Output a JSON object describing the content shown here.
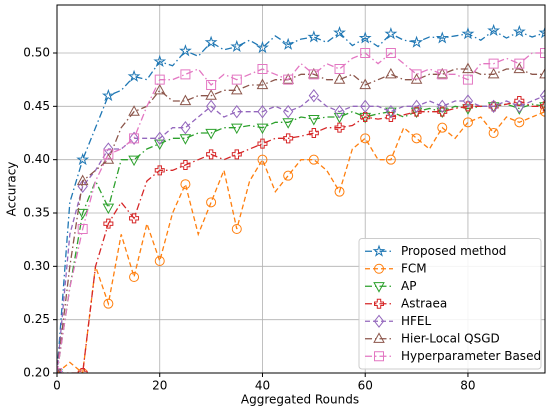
{
  "chart_data": {
    "type": "line",
    "xlabel": "Aggregated Rounds",
    "ylabel": "Accuracy",
    "x": [
      0,
      2.5,
      5,
      7.5,
      10,
      12.5,
      15,
      17.5,
      20,
      22.5,
      25,
      27.5,
      30,
      32.5,
      35,
      37.5,
      40,
      42.5,
      45,
      47.5,
      50,
      52.5,
      55,
      57.5,
      60,
      62.5,
      65,
      67.5,
      70,
      72.5,
      75,
      77.5,
      80,
      82.5,
      85,
      87.5,
      90,
      92.5,
      95
    ],
    "series": [
      {
        "name": "Proposed method",
        "color": "#1f77b4",
        "marker": "star",
        "dash": "dashdot",
        "values": [
          0.2,
          0.36,
          0.4,
          0.43,
          0.46,
          0.465,
          0.478,
          0.475,
          0.492,
          0.488,
          0.502,
          0.497,
          0.51,
          0.503,
          0.506,
          0.512,
          0.505,
          0.516,
          0.508,
          0.513,
          0.515,
          0.51,
          0.519,
          0.507,
          0.514,
          0.506,
          0.518,
          0.512,
          0.51,
          0.515,
          0.514,
          0.516,
          0.518,
          0.512,
          0.521,
          0.514,
          0.52,
          0.515,
          0.519
        ]
      },
      {
        "name": "FCM",
        "color": "#ff7f0e",
        "marker": "circle",
        "dash": "dashed",
        "values": [
          0.2,
          0.21,
          0.2,
          0.3,
          0.265,
          0.33,
          0.29,
          0.34,
          0.305,
          0.35,
          0.377,
          0.33,
          0.36,
          0.39,
          0.335,
          0.38,
          0.4,
          0.37,
          0.385,
          0.4,
          0.4,
          0.39,
          0.37,
          0.41,
          0.42,
          0.4,
          0.4,
          0.43,
          0.42,
          0.41,
          0.43,
          0.42,
          0.435,
          0.44,
          0.425,
          0.44,
          0.435,
          0.44,
          0.445
        ]
      },
      {
        "name": "AP",
        "color": "#2ca02c",
        "marker": "triangle-down",
        "dash": "dashdot",
        "values": [
          0.2,
          0.28,
          0.35,
          0.38,
          0.355,
          0.4,
          0.4,
          0.41,
          0.415,
          0.42,
          0.42,
          0.425,
          0.425,
          0.43,
          0.43,
          0.432,
          0.43,
          0.435,
          0.435,
          0.44,
          0.438,
          0.44,
          0.44,
          0.445,
          0.44,
          0.443,
          0.445,
          0.44,
          0.445,
          0.448,
          0.445,
          0.45,
          0.448,
          0.45,
          0.45,
          0.452,
          0.448,
          0.452,
          0.45
        ]
      },
      {
        "name": "Astraea",
        "color": "#d62728",
        "marker": "plus",
        "dash": "dashdot",
        "values": [
          0.2,
          0.2,
          0.2,
          0.3,
          0.34,
          0.36,
          0.345,
          0.38,
          0.39,
          0.39,
          0.395,
          0.4,
          0.405,
          0.4,
          0.405,
          0.41,
          0.415,
          0.42,
          0.42,
          0.422,
          0.425,
          0.43,
          0.43,
          0.432,
          0.44,
          0.438,
          0.44,
          0.442,
          0.445,
          0.445,
          0.445,
          0.448,
          0.45,
          0.45,
          0.45,
          0.452,
          0.455,
          0.45,
          0.45
        ]
      },
      {
        "name": "HFEL",
        "color": "#9467bd",
        "marker": "diamond",
        "dash": "dashed",
        "values": [
          0.2,
          0.33,
          0.375,
          0.39,
          0.41,
          0.41,
          0.42,
          0.42,
          0.42,
          0.43,
          0.43,
          0.44,
          0.45,
          0.44,
          0.445,
          0.445,
          0.445,
          0.45,
          0.445,
          0.45,
          0.46,
          0.45,
          0.445,
          0.45,
          0.45,
          0.45,
          0.445,
          0.45,
          0.45,
          0.455,
          0.45,
          0.455,
          0.455,
          0.45,
          0.45,
          0.455,
          0.45,
          0.455,
          0.46
        ]
      },
      {
        "name": "Hier-Local QSGD",
        "color": "#8c564b",
        "marker": "triangle-up",
        "dash": "dashdot",
        "values": [
          0.2,
          0.3,
          0.38,
          0.39,
          0.4,
          0.43,
          0.445,
          0.45,
          0.465,
          0.455,
          0.455,
          0.46,
          0.46,
          0.465,
          0.465,
          0.47,
          0.47,
          0.475,
          0.475,
          0.48,
          0.48,
          0.475,
          0.475,
          0.48,
          0.47,
          0.475,
          0.48,
          0.475,
          0.475,
          0.48,
          0.48,
          0.485,
          0.485,
          0.48,
          0.48,
          0.485,
          0.485,
          0.48,
          0.48
        ]
      },
      {
        "name": "Hyperparameter Based",
        "color": "#e377c2",
        "marker": "square",
        "dash": "dashdot",
        "values": [
          0.2,
          0.28,
          0.335,
          0.38,
          0.405,
          0.41,
          0.42,
          0.45,
          0.475,
          0.475,
          0.48,
          0.485,
          0.47,
          0.48,
          0.475,
          0.48,
          0.485,
          0.48,
          0.475,
          0.49,
          0.48,
          0.49,
          0.485,
          0.495,
          0.5,
          0.49,
          0.5,
          0.49,
          0.48,
          0.485,
          0.48,
          0.48,
          0.475,
          0.49,
          0.49,
          0.495,
          0.49,
          0.5,
          0.5
        ]
      }
    ],
    "xlim": [
      0,
      95
    ],
    "ylim": [
      0.2,
      0.545
    ],
    "xticks": [
      0,
      20,
      40,
      60,
      80
    ],
    "yticks": [
      {
        "value": 0.2,
        "label": "0.20"
      },
      {
        "value": 0.25,
        "label": "0.25"
      },
      {
        "value": 0.3,
        "label": "0.30"
      },
      {
        "value": 0.35,
        "label": "0.35"
      },
      {
        "value": 0.4,
        "label": "0.40"
      },
      {
        "value": 0.45,
        "label": "0.45"
      },
      {
        "value": 0.5,
        "label": "0.50"
      }
    ],
    "grid": true,
    "legend": "lower right"
  }
}
